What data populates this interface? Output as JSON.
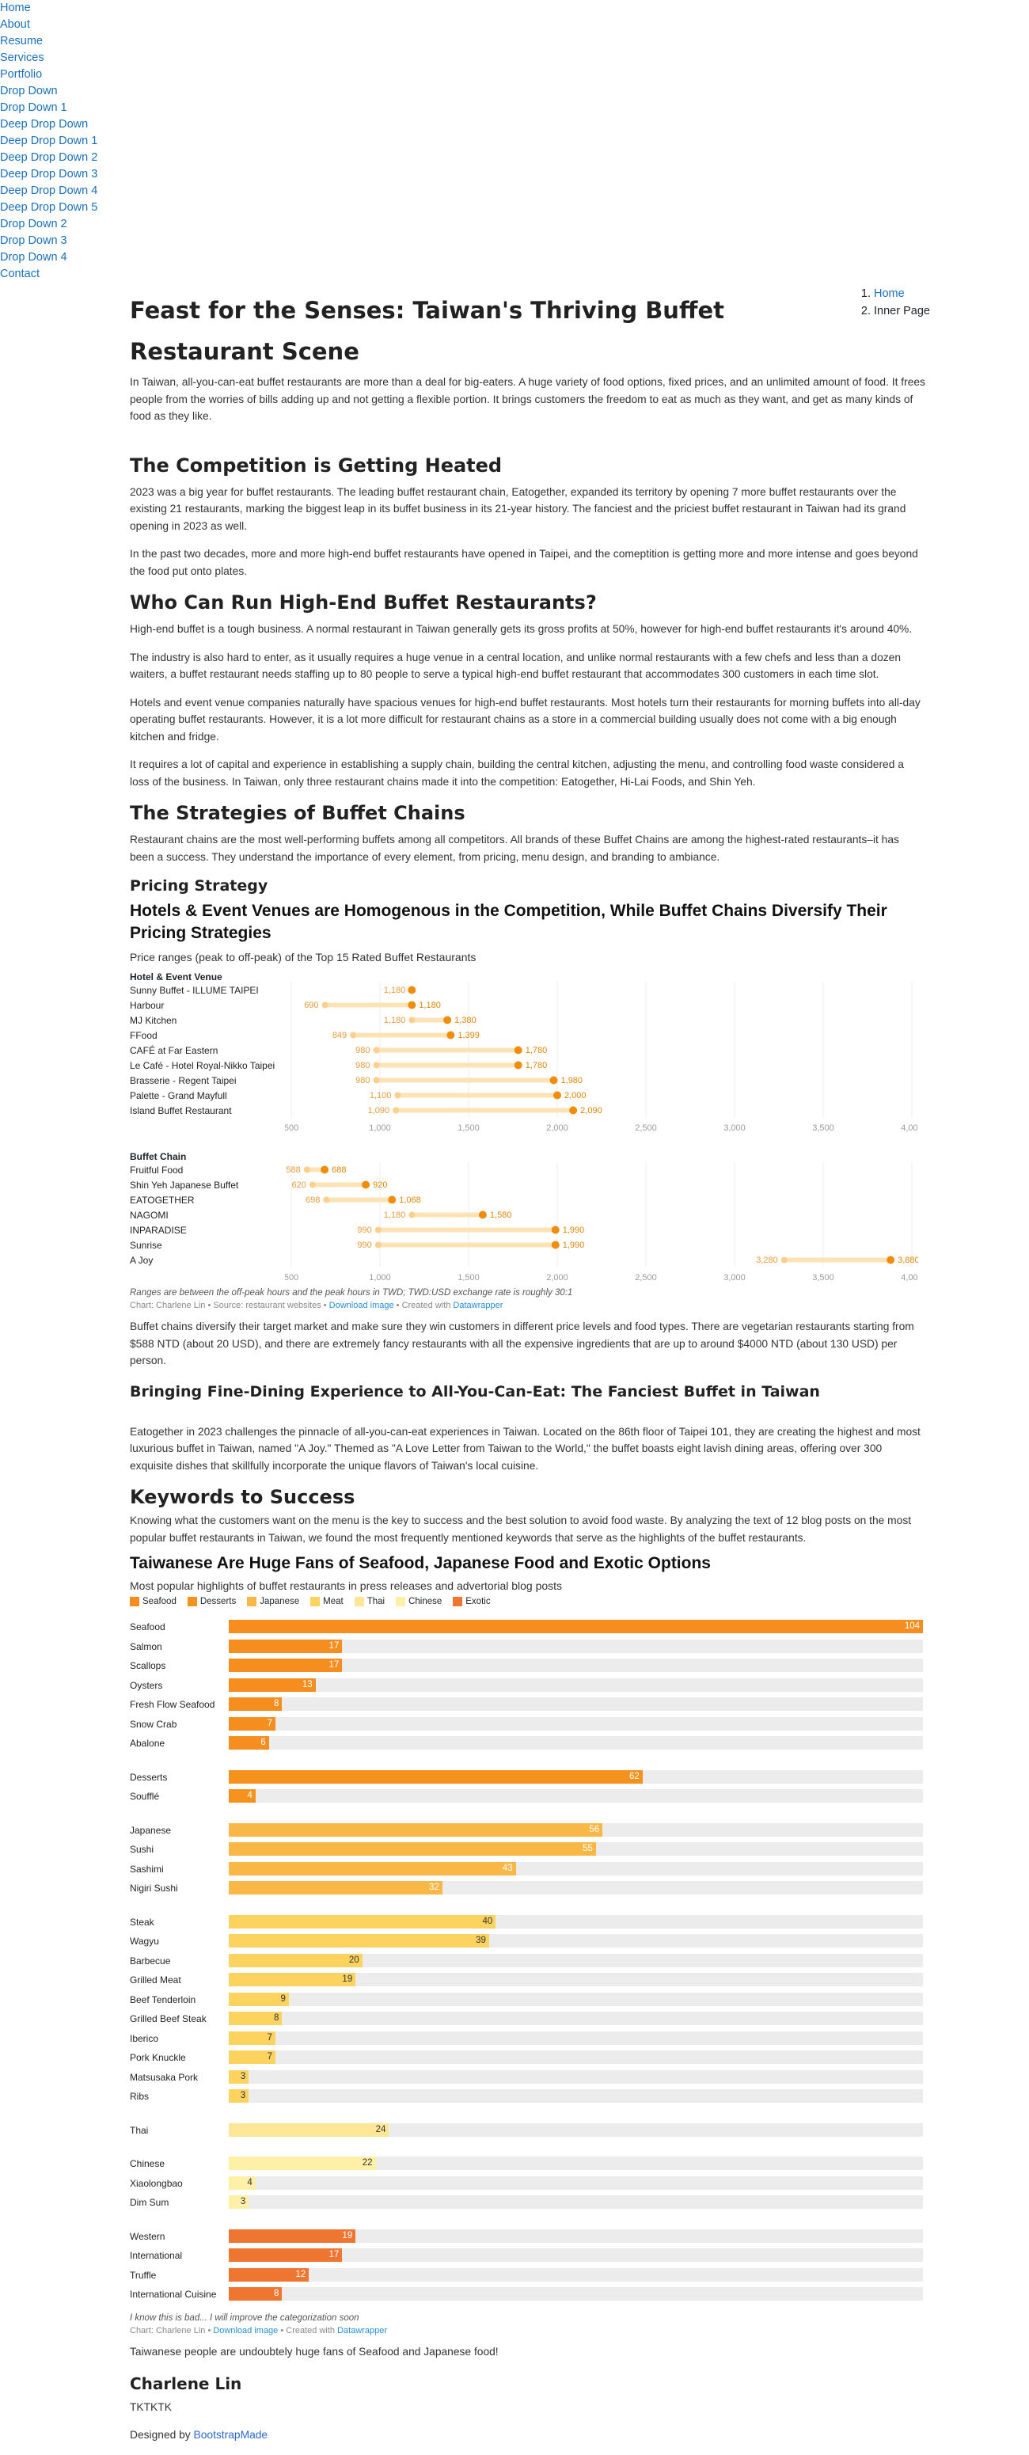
{
  "nav": [
    "Home",
    "About",
    "Resume",
    "Services",
    "Portfolio",
    "Drop Down",
    "Drop Down 1",
    "Deep Drop Down",
    "Deep Drop Down 1",
    "Deep Drop Down 2",
    "Deep Drop Down 3",
    "Deep Drop Down 4",
    "Deep Drop Down 5",
    "Drop Down 2",
    "Drop Down 3",
    "Drop Down 4",
    "Contact"
  ],
  "breadcrumb": {
    "home": "Home",
    "current": "Inner Page"
  },
  "title": "Feast for the Senses: Taiwan's Thriving Buffet Restaurant Scene",
  "intro": "In Taiwan, all-you-can-eat buffet restaurants are more than a deal for big-eaters. A huge variety of food options, fixed prices, and an unlimited amount of food. It frees people from the worries of bills adding up and not getting a flexible portion. It brings customers the freedom to eat as much as they want, and get as many kinds of food as they like.",
  "s1": {
    "h": "The Competition is Getting Heated",
    "p1": "2023 was a big year for buffet restaurants. The leading buffet restaurant chain, Eatogether, expanded its territory by opening 7 more buffet restaurants over the existing 21 restaurants, marking the biggest leap in its buffet business in its 21-year history. The fanciest and the priciest buffet restaurant in Taiwan had its grand opening in 2023 as well.",
    "p2": "In the past two decades, more and more high-end buffet restaurants have opened in Taipei, and the comeptition is getting more and more intense and goes beyond the food put onto plates."
  },
  "s2": {
    "h": "Who Can Run High-End Buffet Restaurants?",
    "p1": "High-end buffet is a tough business. A normal restaurant in Taiwan generally gets its gross profits at 50%, however for high-end buffet restaurants it's around 40%.",
    "p2": "The industry is also hard to enter, as it usually requires a huge venue in a central location, and unlike normal restaurants with a few chefs and less than a dozen waiters, a buffet restaurant needs staffing up to 80 people to serve a typical high-end buffet restaurant that accommodates 300 customers in each time slot.",
    "p3": "Hotels and event venue companies naturally have spacious venues for high-end buffet restaurants. Most hotels turn their restaurants for morning buffets into all-day operating buffet restaurants. However, it is a lot more difficult for restaurant chains as a store in a commercial building usually does not come with a big enough kitchen and fridge.",
    "p4": "It requires a lot of capital and experience in establishing a supply chain, building the central kitchen, adjusting the menu, and controlling food waste considered a loss of the business. In Taiwan, only three restaurant chains made it into the competition: Eatogether, Hi-Lai Foods, and Shin Yeh."
  },
  "s3": {
    "h": "The Strategies of Buffet Chains",
    "p1": "Restaurant chains are the most well-performing buffets among all competitors. All brands of these Buffet Chains are among the highest-rated restaurants–it has been a success. They understand the importance of every element, from pricing, menu design, and branding to ambiance.",
    "sub": "Pricing Strategy"
  },
  "c1": {
    "title": "Hotels & Event Venues are Homogenous in the Competition, While Buffet Chains Diversify Their Pricing Strategies",
    "subtitle": "Price ranges (peak to off-peak) of the Top 15 Rated Buffet Restaurants",
    "note": "Ranges are between the off-peak hours and the peak hours in TWD; TWD:USD exchange rate is roughly 30:1",
    "credit_a": "Chart: Charlene Lin • Source: restaurant websites • ",
    "download": "Download image",
    "credit_b": " • Created with ",
    "dw": "Datawrapper"
  },
  "p_after1": "Buffet chains diversify their target market and make sure they win customers in different price levels and food types. There are vegetarian restaurants starting from $588 NTD (about 20 USD), and there are extremely fancy restaurants with all the expensive ingredients that are up to around $4000 NTD (about 130 USD) per person.",
  "s4": {
    "h": "Bringing Fine-Dining Experience to All-You-Can-Eat: The Fanciest Buffet in Taiwan",
    "p1": "Eatogether in 2023 challenges the pinnacle of all-you-can-eat experiences in Taiwan. Located on the 86th floor of Taipei 101, they are creating the highest and most luxurious buffet in Taiwan, named \"A Joy.\" Themed as \"A Love Letter from Taiwan to the World,\" the buffet boasts eight lavish dining areas, offering over 300 exquisite dishes that skillfully incorporate the unique flavors of Taiwan's local cuisine."
  },
  "s5": {
    "h": "Keywords to Success",
    "p1": "Knowing what the customers want on the menu is the key to success and the best solution to avoid food waste. By analyzing the text of 12 blog posts on the most popular buffet restaurants in Taiwan, we found the most frequently mentioned keywords that serve as the highlights of the buffet restaurants."
  },
  "c2": {
    "title": "Taiwanese Are Huge Fans of Seafood, Japanese Food and Exotic Options",
    "subtitle": "Most popular highlights of buffet restaurants in press releases and advertorial blog posts",
    "note": "I know this is bad... I will improve the categorization soon",
    "credit_a": "Chart: Charlene Lin • ",
    "download": "Download image",
    "credit_b": " • Created with ",
    "dw": "Datawrapper"
  },
  "p_after2": "Taiwanese people are undoubtely huge fans of Seafood and Japanese food!",
  "author": {
    "name": "Charlene Lin",
    "text": "TKTKTK",
    "designed": "Designed by ",
    "brand": "BootstrapMade"
  },
  "chart_data": [
    {
      "type": "range",
      "title": "Hotels & Event Venues are Homogenous in the Competition, While Buffet Chains Diversify Their Pricing Strategies",
      "xlim": [
        500,
        4000
      ],
      "ticks": [
        500,
        1000,
        1500,
        2000,
        2500,
        3000,
        3500,
        4000
      ],
      "groups": [
        {
          "name": "Hotel & Event Venue",
          "rows": [
            {
              "label": "Sunny Buffet - ILLUME TAIPEI",
              "low": 1180,
              "high": 1180
            },
            {
              "label": "Harbour",
              "low": 690,
              "high": 1180
            },
            {
              "label": "MJ Kitchen",
              "low": 1180,
              "high": 1380
            },
            {
              "label": "FFood",
              "low": 849,
              "high": 1399
            },
            {
              "label": "CAFÉ at Far Eastern",
              "low": 980,
              "high": 1780
            },
            {
              "label": "Le Café - Hotel Royal-Nikko Taipei",
              "low": 980,
              "high": 1780
            },
            {
              "label": "Brasserie - Regent Taipei",
              "low": 980,
              "high": 1980
            },
            {
              "label": "Palette - Grand Mayfull",
              "low": 1100,
              "high": 2000
            },
            {
              "label": "Island Buffet Restaurant",
              "low": 1090,
              "high": 2090
            }
          ]
        },
        {
          "name": "Buffet Chain",
          "rows": [
            {
              "label": "Fruitful Food",
              "low": 588,
              "high": 688
            },
            {
              "label": "Shin Yeh Japanese Buffet",
              "low": 620,
              "high": 920
            },
            {
              "label": "EATOGETHER",
              "low": 698,
              "high": 1068
            },
            {
              "label": "NAGOMI",
              "low": 1180,
              "high": 1580
            },
            {
              "label": "INPARADISE",
              "low": 990,
              "high": 1990
            },
            {
              "label": "Sunrise",
              "low": 990,
              "high": 1990
            },
            {
              "label": "A Joy",
              "low": 3280,
              "high": 3880
            }
          ]
        }
      ]
    },
    {
      "type": "bar",
      "title": "Taiwanese Are Huge Fans of Seafood, Japanese Food and Exotic Options",
      "max": 104,
      "categories": [
        {
          "name": "Seafood",
          "color": "#f58e1f",
          "items": [
            [
              "Seafood",
              104
            ],
            [
              "Salmon",
              17
            ],
            [
              "Scallops",
              17
            ],
            [
              "Oysters",
              13
            ],
            [
              "Fresh Flow Seafood",
              8
            ],
            [
              "Snow Crab",
              7
            ],
            [
              "Abalone",
              6
            ]
          ]
        },
        {
          "name": "Desserts",
          "color": "#f5921e",
          "items": [
            [
              "Desserts",
              62
            ],
            [
              "Soufflé",
              4
            ]
          ]
        },
        {
          "name": "Japanese",
          "color": "#f9b845",
          "items": [
            [
              "Japanese",
              56
            ],
            [
              "Sushi",
              55
            ],
            [
              "Sashimi",
              43
            ],
            [
              "Nigiri Sushi",
              32
            ]
          ]
        },
        {
          "name": "Meat",
          "color": "#fcd35f",
          "items": [
            [
              "Steak",
              40
            ],
            [
              "Wagyu",
              39
            ],
            [
              "Barbecue",
              20
            ],
            [
              "Grilled Meat",
              19
            ],
            [
              "Beef Tenderloin",
              9
            ],
            [
              "Grilled Beef Steak",
              8
            ],
            [
              "Iberico",
              7
            ],
            [
              "Pork Knuckle",
              7
            ],
            [
              "Matsusaka Pork",
              3
            ],
            [
              "Ribs",
              3
            ]
          ]
        },
        {
          "name": "Thai",
          "color": "#fde797",
          "items": [
            [
              "Thai",
              24
            ]
          ]
        },
        {
          "name": "Chinese",
          "color": "#fff0a8",
          "items": [
            [
              "Chinese",
              22
            ],
            [
              "Xiaolongbao",
              4
            ],
            [
              "Dim Sum",
              3
            ]
          ]
        },
        {
          "name": "Exotic",
          "color": "#ef7631",
          "items": [
            [
              "Western",
              19
            ],
            [
              "International",
              17
            ],
            [
              "Truffle",
              12
            ],
            [
              "International Cuisine",
              8
            ]
          ]
        }
      ]
    }
  ]
}
